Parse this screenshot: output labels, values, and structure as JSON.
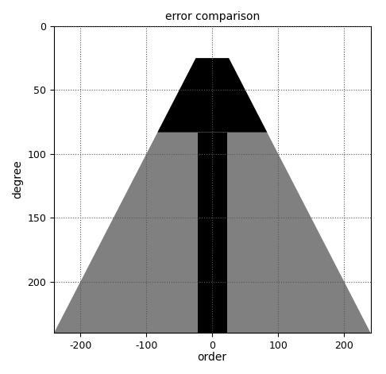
{
  "chart_data": {
    "type": "area",
    "title": "error comparison",
    "x_label": "order",
    "y_label": "degree",
    "xlim": [
      -240,
      240
    ],
    "xticks": [
      -200,
      -100,
      0,
      100,
      200
    ],
    "ylim": [
      240,
      0
    ],
    "yticks": [
      0,
      50,
      100,
      150,
      200
    ],
    "grid": true,
    "series": [
      {
        "color": "#808080",
        "x": [
          -25,
          25,
          240,
          -240
        ],
        "y": [
          25,
          25,
          240,
          240
        ]
      },
      {
        "color": "#000000",
        "x": [
          -25,
          25,
          83,
          -83
        ],
        "y": [
          25,
          25,
          83,
          83
        ]
      },
      {
        "color": "#000000",
        "x": [
          -22,
          22,
          22,
          -22
        ],
        "y": [
          83,
          83,
          240,
          240
        ]
      }
    ]
  }
}
